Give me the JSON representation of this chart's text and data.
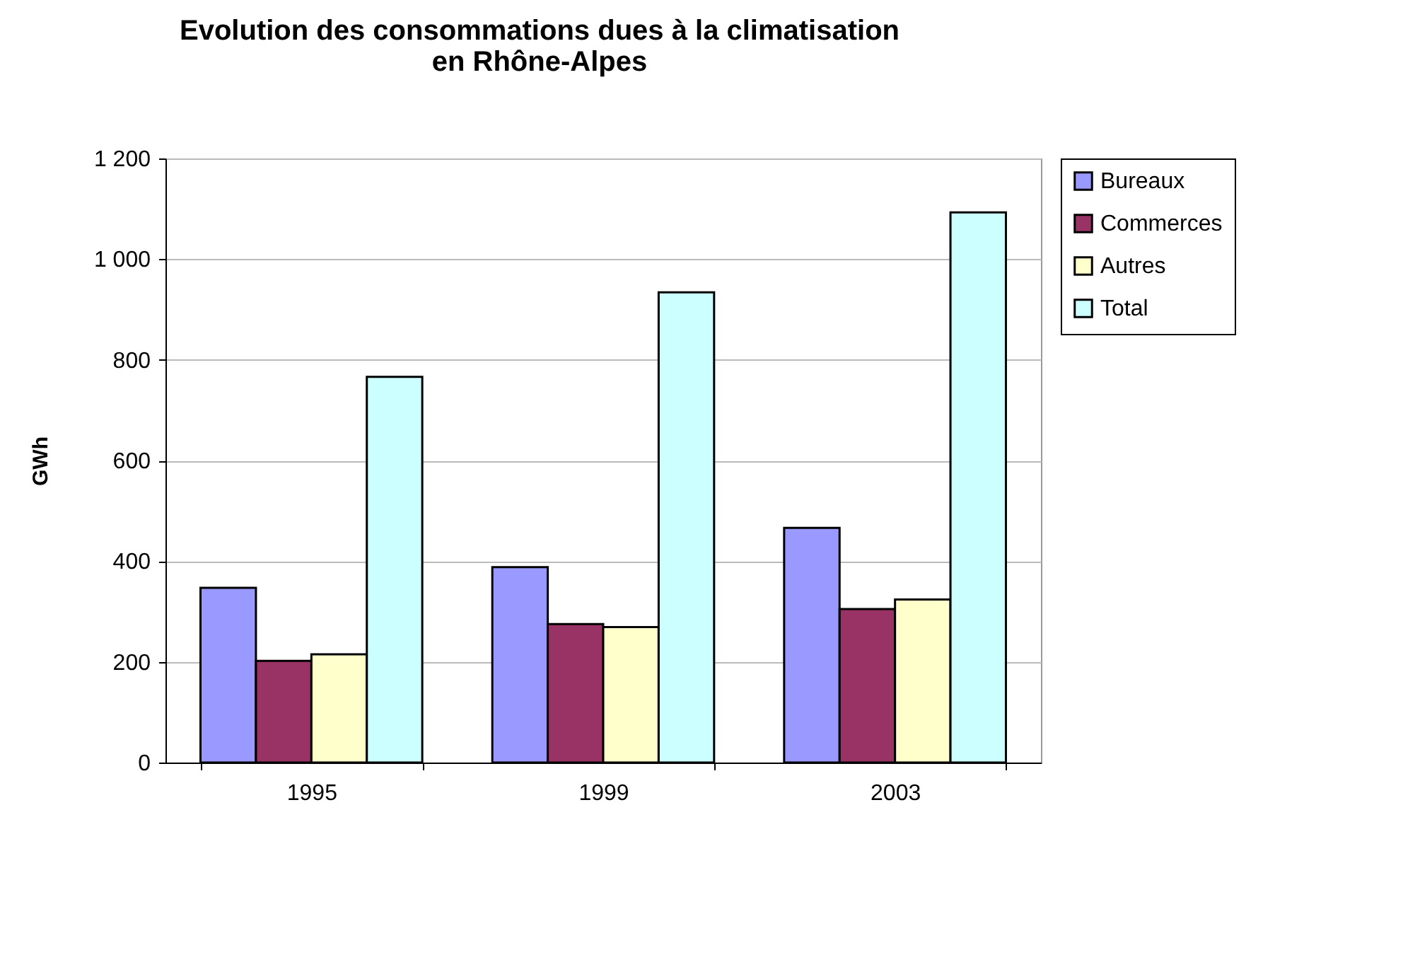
{
  "chart_data": {
    "type": "bar",
    "title": "Evolution des consommations dues à la climatisation\nen Rhône-Alpes",
    "ylabel": "GWh",
    "categories": [
      "1995",
      "1999",
      "2003"
    ],
    "series": [
      {
        "name": "Bureaux",
        "color": "#9999ff",
        "values": [
          347,
          388,
          466
        ]
      },
      {
        "name": "Commerces",
        "color": "#993366",
        "values": [
          202,
          275,
          305
        ]
      },
      {
        "name": "Autres",
        "color": "#ffffcc",
        "values": [
          215,
          269,
          324
        ]
      },
      {
        "name": "Total",
        "color": "#ccffff",
        "values": [
          766,
          934,
          1093
        ]
      }
    ],
    "ylim": [
      0,
      1200
    ],
    "yticks": [
      0,
      200,
      400,
      600,
      800,
      {
        "value": 1000,
        "label": "1 000"
      },
      {
        "value": 1200,
        "label": "1 200"
      }
    ],
    "grid": "y",
    "legend": "top right"
  }
}
